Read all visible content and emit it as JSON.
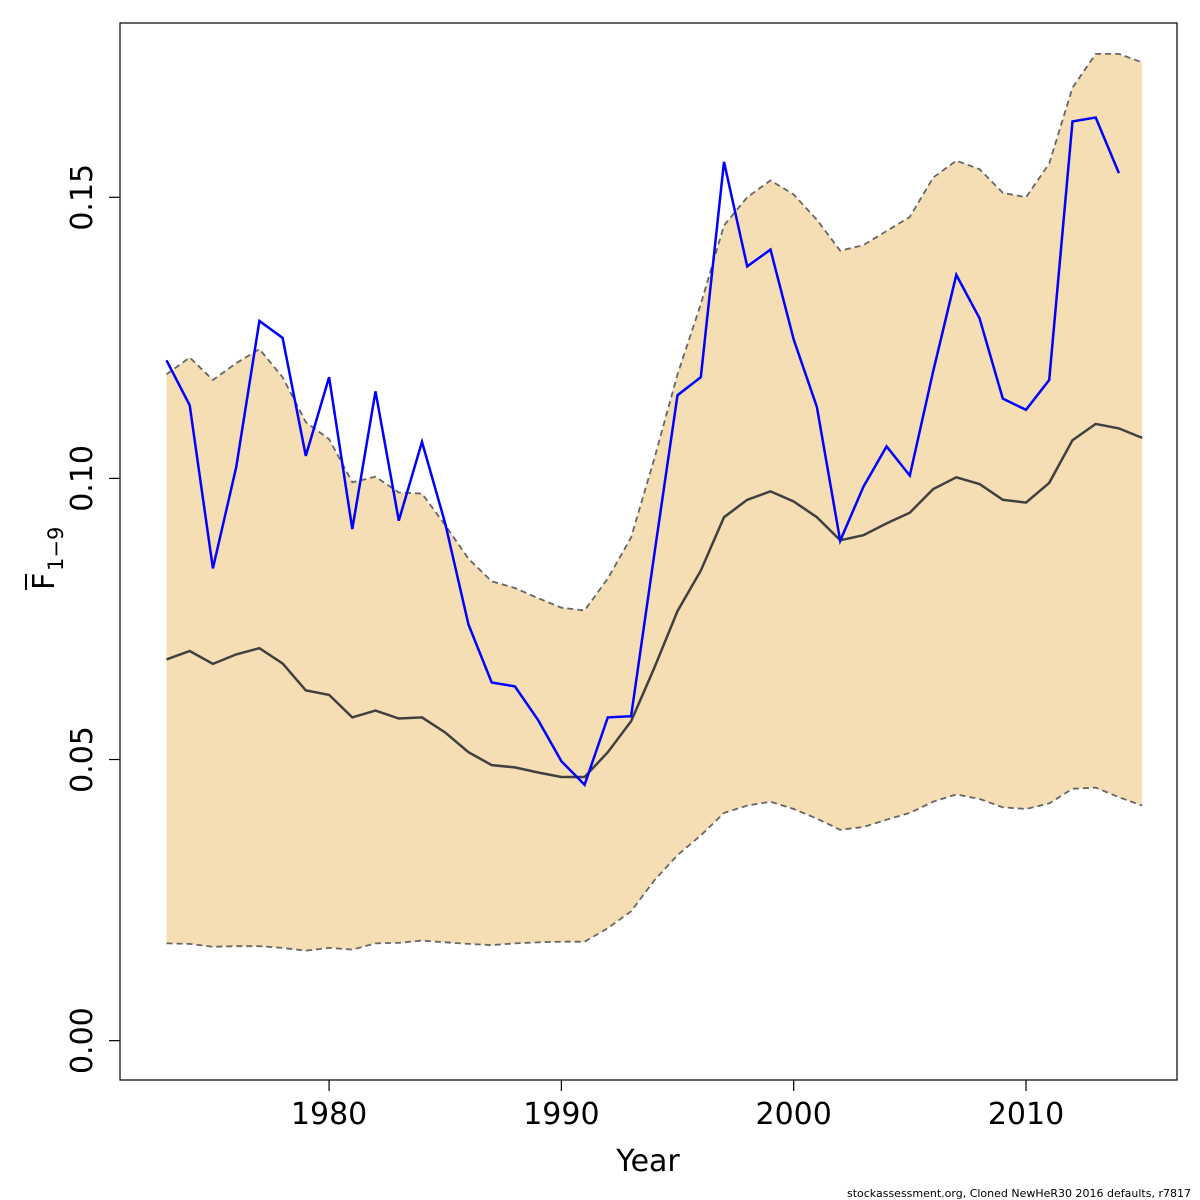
{
  "chart_data": {
    "type": "line",
    "xlabel": "Year",
    "ylabel_main": "F",
    "ylabel_sub": "1−9",
    "xlim": [
      1971,
      2016.5
    ],
    "ylim": [
      -0.007,
      0.181
    ],
    "xticks": [
      1980,
      1990,
      2000,
      2010
    ],
    "yticks": [
      0.0,
      0.05,
      0.1,
      0.15
    ],
    "ytick_labels": [
      "0.00",
      "0.05",
      "0.10",
      "0.15"
    ],
    "band_color": "#F5DEB3",
    "years": [
      1973,
      1974,
      1975,
      1976,
      1977,
      1978,
      1979,
      1980,
      1981,
      1982,
      1983,
      1984,
      1985,
      1986,
      1987,
      1988,
      1989,
      1990,
      1991,
      1992,
      1993,
      1994,
      1995,
      1996,
      1997,
      1998,
      1999,
      2000,
      2001,
      2002,
      2003,
      2004,
      2005,
      2006,
      2007,
      2008,
      2009,
      2010,
      2011,
      2012,
      2013,
      2014,
      2015
    ],
    "series": [
      {
        "role": "estimate",
        "color": "#404040",
        "values": [
          0.0678,
          0.0693,
          0.067,
          0.0687,
          0.0698,
          0.0671,
          0.0623,
          0.0615,
          0.0575,
          0.0587,
          0.0573,
          0.0575,
          0.0548,
          0.0513,
          0.049,
          0.0486,
          0.0477,
          0.0469,
          0.0469,
          0.0513,
          0.0568,
          0.0663,
          0.0764,
          0.0836,
          0.0931,
          0.0962,
          0.0977,
          0.0959,
          0.0931,
          0.089,
          0.0899,
          0.092,
          0.0939,
          0.0981,
          0.1002,
          0.099,
          0.0962,
          0.0957,
          0.0992,
          0.1068,
          0.1097,
          0.1089,
          0.1072
        ]
      },
      {
        "role": "upper",
        "color": "#666666",
        "values": [
          0.1185,
          0.1215,
          0.1175,
          0.1205,
          0.123,
          0.118,
          0.11,
          0.107,
          0.0993,
          0.1003,
          0.0975,
          0.0973,
          0.0917,
          0.0857,
          0.0817,
          0.0805,
          0.0787,
          0.077,
          0.0765,
          0.0822,
          0.0895,
          0.1035,
          0.1185,
          0.131,
          0.145,
          0.15,
          0.153,
          0.1505,
          0.146,
          0.1405,
          0.1415,
          0.144,
          0.1465,
          0.1535,
          0.1565,
          0.155,
          0.1508,
          0.15,
          0.156,
          0.1695,
          0.1755,
          0.1755,
          0.174
        ]
      },
      {
        "role": "lower",
        "color": "#666666",
        "values": [
          0.0173,
          0.0172,
          0.0167,
          0.0168,
          0.0168,
          0.0165,
          0.016,
          0.0165,
          0.0162,
          0.0173,
          0.0174,
          0.0178,
          0.0175,
          0.0172,
          0.017,
          0.0173,
          0.0175,
          0.0176,
          0.0176,
          0.02,
          0.023,
          0.0285,
          0.033,
          0.0365,
          0.0405,
          0.0418,
          0.0425,
          0.0412,
          0.0395,
          0.0375,
          0.038,
          0.0393,
          0.0405,
          0.0425,
          0.0438,
          0.043,
          0.0415,
          0.0412,
          0.0422,
          0.0448,
          0.045,
          0.0433,
          0.0418
        ]
      },
      {
        "role": "retro",
        "color": "#0000FF",
        "values": [
          0.121,
          0.113,
          0.084,
          0.102,
          0.128,
          0.125,
          0.104,
          0.118,
          0.091,
          0.1155,
          0.0925,
          0.1065,
          0.092,
          0.074,
          0.0637,
          0.063,
          0.057,
          0.0497,
          0.0455,
          0.0575,
          0.0577,
          0.0865,
          0.1148,
          0.118,
          0.1563,
          0.1377,
          0.1407,
          0.1247,
          0.1127,
          0.0889,
          0.0985,
          0.1057,
          0.1005,
          0.119,
          0.1362,
          0.1285,
          0.1142,
          0.1122,
          0.1175,
          0.1635,
          0.1642,
          0.1543,
          null
        ]
      }
    ]
  },
  "footer_text": "stockassessment.org, Cloned  NewHeR30  2016  defaults, r7817"
}
